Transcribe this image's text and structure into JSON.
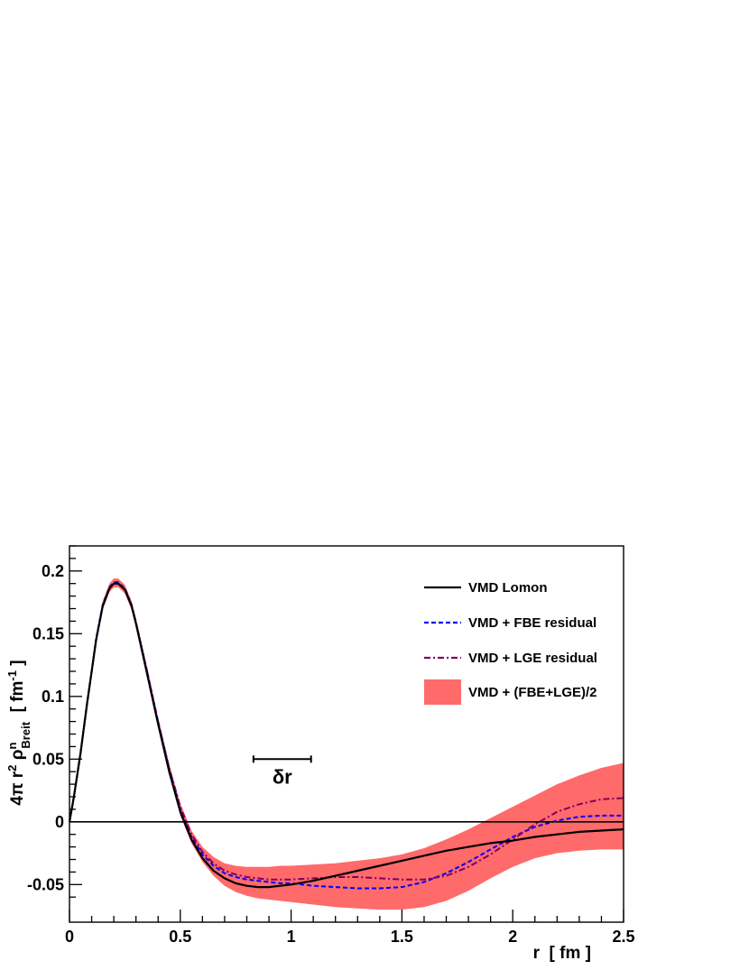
{
  "chart_data": {
    "type": "line",
    "xlabel": "r  [ fm ]",
    "ylabel": {
      "prefix": "4π r",
      "sup1": "2",
      "rho": " ρ",
      "sup2": "n",
      "sub": "Breit",
      "unit_open": "  [ fm",
      "unit_sup": "-1",
      "unit_close": " ]"
    },
    "xlim": [
      0,
      2.5
    ],
    "ylim": [
      -0.08,
      0.22
    ],
    "x_ticks": [
      {
        "value": 0,
        "label": "0"
      },
      {
        "value": 0.5,
        "label": "0.5"
      },
      {
        "value": 1,
        "label": "1"
      },
      {
        "value": 1.5,
        "label": "1.5"
      },
      {
        "value": 2,
        "label": "2"
      },
      {
        "value": 2.5,
        "label": "2.5"
      }
    ],
    "y_ticks": [
      {
        "value": -0.05,
        "label": "-0.05"
      },
      {
        "value": 0,
        "label": "0"
      },
      {
        "value": 0.05,
        "label": "0.05"
      },
      {
        "value": 0.1,
        "label": "0.1"
      },
      {
        "value": 0.15,
        "label": "0.15"
      },
      {
        "value": 0.2,
        "label": "0.2"
      }
    ],
    "grid": false,
    "legend_position": "top-right",
    "annotation": {
      "text": "δr",
      "x1": 0.83,
      "x2": 1.09,
      "y": 0.05
    },
    "series": [
      {
        "name": "VMD Lomon",
        "style": "solid",
        "color": "#000000",
        "x": [
          0,
          0.02,
          0.05,
          0.08,
          0.1,
          0.12,
          0.15,
          0.18,
          0.2,
          0.22,
          0.25,
          0.28,
          0.3,
          0.35,
          0.4,
          0.45,
          0.5,
          0.55,
          0.6,
          0.65,
          0.7,
          0.75,
          0.8,
          0.85,
          0.9,
          0.95,
          1.0,
          1.1,
          1.2,
          1.3,
          1.4,
          1.5,
          1.6,
          1.7,
          1.8,
          1.9,
          2.0,
          2.1,
          2.2,
          2.3,
          2.4,
          2.5
        ],
        "values": [
          0,
          0.02,
          0.055,
          0.095,
          0.12,
          0.145,
          0.172,
          0.186,
          0.19,
          0.19,
          0.185,
          0.172,
          0.158,
          0.118,
          0.078,
          0.04,
          0.008,
          -0.014,
          -0.029,
          -0.039,
          -0.045,
          -0.049,
          -0.051,
          -0.052,
          -0.052,
          -0.051,
          -0.05,
          -0.047,
          -0.043,
          -0.039,
          -0.035,
          -0.031,
          -0.027,
          -0.023,
          -0.02,
          -0.017,
          -0.015,
          -0.012,
          -0.01,
          -0.008,
          -0.007,
          -0.006
        ]
      },
      {
        "name": "VMD + FBE residual",
        "style": "dashed",
        "color": "#0000ff",
        "x": [
          0,
          0.02,
          0.05,
          0.08,
          0.1,
          0.12,
          0.15,
          0.18,
          0.2,
          0.22,
          0.25,
          0.28,
          0.3,
          0.35,
          0.4,
          0.45,
          0.5,
          0.55,
          0.6,
          0.65,
          0.7,
          0.75,
          0.8,
          0.85,
          0.9,
          0.95,
          1.0,
          1.1,
          1.2,
          1.3,
          1.4,
          1.5,
          1.6,
          1.7,
          1.8,
          1.9,
          2.0,
          2.1,
          2.2,
          2.3,
          2.4,
          2.5
        ],
        "values": [
          0,
          0.02,
          0.055,
          0.095,
          0.12,
          0.146,
          0.173,
          0.187,
          0.191,
          0.191,
          0.186,
          0.173,
          0.159,
          0.12,
          0.08,
          0.042,
          0.01,
          -0.012,
          -0.026,
          -0.035,
          -0.041,
          -0.044,
          -0.046,
          -0.047,
          -0.048,
          -0.049,
          -0.049,
          -0.051,
          -0.052,
          -0.053,
          -0.053,
          -0.052,
          -0.048,
          -0.041,
          -0.032,
          -0.022,
          -0.012,
          -0.004,
          0.001,
          0.004,
          0.005,
          0.005
        ]
      },
      {
        "name": "VMD + LGE residual",
        "style": "dashdot",
        "color": "#800060",
        "x": [
          0,
          0.02,
          0.05,
          0.08,
          0.1,
          0.12,
          0.15,
          0.18,
          0.2,
          0.22,
          0.25,
          0.28,
          0.3,
          0.35,
          0.4,
          0.45,
          0.5,
          0.55,
          0.6,
          0.65,
          0.7,
          0.75,
          0.8,
          0.85,
          0.9,
          0.95,
          1.0,
          1.1,
          1.2,
          1.3,
          1.4,
          1.5,
          1.6,
          1.7,
          1.8,
          1.9,
          2.0,
          2.1,
          2.2,
          2.3,
          2.4,
          2.5
        ],
        "values": [
          0,
          0.02,
          0.055,
          0.095,
          0.12,
          0.145,
          0.172,
          0.186,
          0.19,
          0.19,
          0.186,
          0.173,
          0.159,
          0.12,
          0.08,
          0.043,
          0.012,
          -0.01,
          -0.024,
          -0.033,
          -0.039,
          -0.042,
          -0.044,
          -0.045,
          -0.046,
          -0.046,
          -0.046,
          -0.045,
          -0.044,
          -0.044,
          -0.045,
          -0.046,
          -0.046,
          -0.043,
          -0.036,
          -0.026,
          -0.014,
          -0.002,
          0.008,
          0.014,
          0.018,
          0.019
        ]
      }
    ],
    "band": {
      "name": "VMD + (FBE+LGE)/2",
      "color": "#ff6a6a",
      "x": [
        0,
        0.02,
        0.05,
        0.08,
        0.1,
        0.12,
        0.15,
        0.18,
        0.2,
        0.22,
        0.25,
        0.28,
        0.3,
        0.35,
        0.4,
        0.45,
        0.5,
        0.55,
        0.6,
        0.65,
        0.7,
        0.75,
        0.8,
        0.85,
        0.9,
        0.95,
        1.0,
        1.1,
        1.2,
        1.3,
        1.4,
        1.5,
        1.6,
        1.7,
        1.8,
        1.9,
        2.0,
        2.1,
        2.2,
        2.3,
        2.4,
        2.5
      ],
      "upper": [
        0,
        0.021,
        0.057,
        0.098,
        0.123,
        0.149,
        0.176,
        0.19,
        0.194,
        0.194,
        0.189,
        0.176,
        0.162,
        0.123,
        0.083,
        0.046,
        0.015,
        -0.007,
        -0.02,
        -0.028,
        -0.033,
        -0.035,
        -0.036,
        -0.036,
        -0.036,
        -0.035,
        -0.035,
        -0.034,
        -0.033,
        -0.031,
        -0.029,
        -0.026,
        -0.021,
        -0.014,
        -0.006,
        0.003,
        0.012,
        0.021,
        0.03,
        0.037,
        0.043,
        0.047
      ],
      "lower": [
        0,
        0.019,
        0.053,
        0.092,
        0.117,
        0.142,
        0.169,
        0.183,
        0.187,
        0.187,
        0.182,
        0.169,
        0.155,
        0.116,
        0.076,
        0.038,
        0.005,
        -0.017,
        -0.032,
        -0.043,
        -0.051,
        -0.056,
        -0.059,
        -0.061,
        -0.062,
        -0.063,
        -0.064,
        -0.066,
        -0.068,
        -0.069,
        -0.07,
        -0.07,
        -0.068,
        -0.063,
        -0.055,
        -0.045,
        -0.036,
        -0.029,
        -0.025,
        -0.023,
        -0.022,
        -0.022
      ]
    }
  }
}
